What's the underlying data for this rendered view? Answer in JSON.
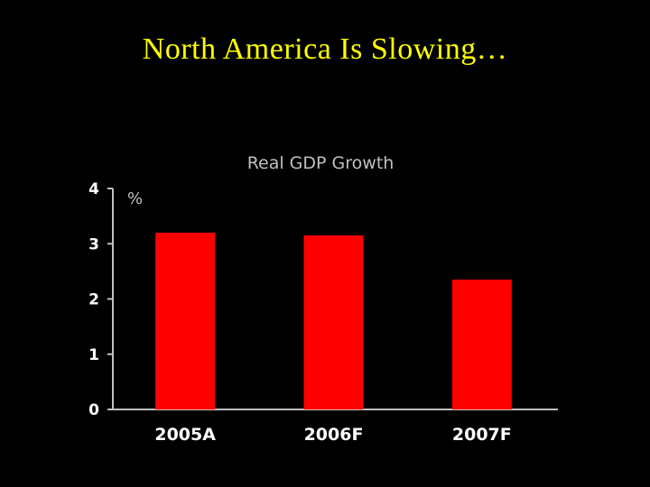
{
  "slide": {
    "title": "North America Is Slowing…"
  },
  "colors": {
    "background": "#000000",
    "title": "#ffff00",
    "bar": "#ff0000",
    "axis": "#bfbfbf",
    "text": "#ffffff"
  },
  "chart_data": {
    "type": "bar",
    "title": "Real GDP Growth",
    "unit_label": "%",
    "categories": [
      "2005A",
      "2006F",
      "2007F"
    ],
    "values": [
      3.2,
      3.15,
      2.35
    ],
    "yticks": [
      "0",
      "1",
      "2",
      "3",
      "4"
    ],
    "ylim": [
      0,
      4
    ],
    "xlabel": "",
    "ylabel": "",
    "grid": false,
    "legend": "none"
  }
}
